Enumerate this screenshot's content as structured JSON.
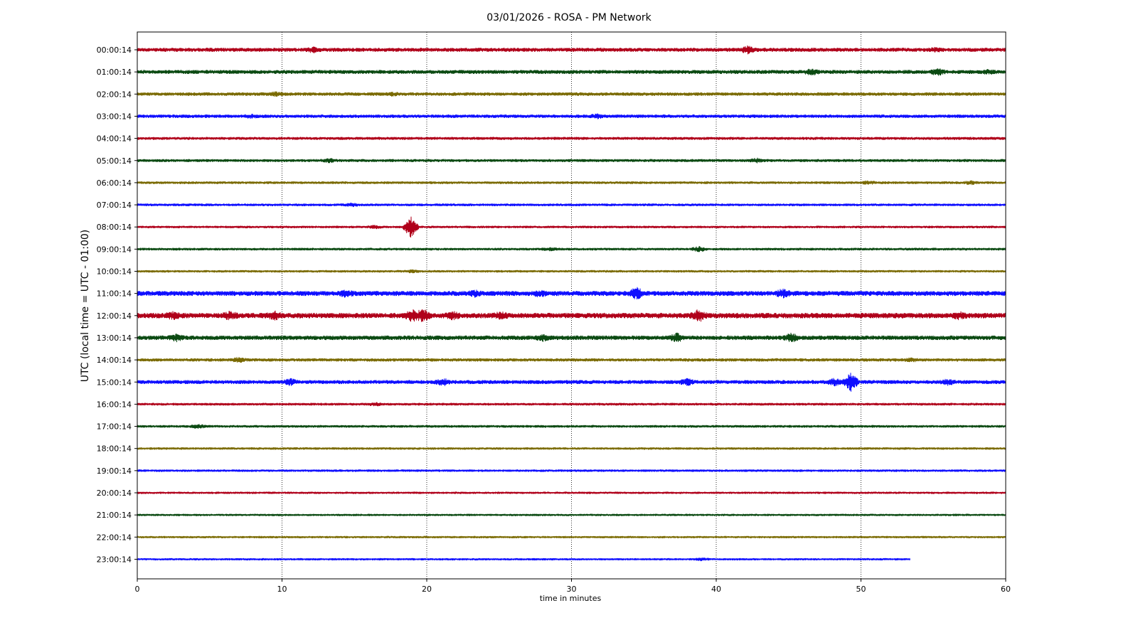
{
  "chart_data": {
    "type": "line",
    "title": "03/01/2026 - ROSA - PM Network",
    "xlabel": "time in minutes",
    "ylabel": "UTC (local time = UTC - 01:00)",
    "xlim": [
      0,
      60
    ],
    "x_ticks": [
      0,
      10,
      20,
      30,
      40,
      50,
      60
    ],
    "grid": "vertical dotted lines at x ticks",
    "colors": [
      "#b0001a",
      "#0b4a12",
      "#7a6a00",
      "#0f0fff"
    ],
    "series": [
      {
        "name": "00:00:14",
        "x_end": 60,
        "amplitude": 0.35,
        "events": [
          {
            "x": 12.2,
            "amp": 0.7
          },
          {
            "x": 42.2,
            "amp": 0.9
          },
          {
            "x": 55.2,
            "amp": 0.55
          }
        ]
      },
      {
        "name": "01:00:14",
        "x_end": 60,
        "amplitude": 0.35,
        "events": [
          {
            "x": 46.6,
            "amp": 0.8
          },
          {
            "x": 55.3,
            "amp": 0.8
          },
          {
            "x": 58.8,
            "amp": 0.55
          }
        ]
      },
      {
        "name": "02:00:14",
        "x_end": 60,
        "amplitude": 0.3,
        "events": [
          {
            "x": 9.5,
            "amp": 0.55
          },
          {
            "x": 17.6,
            "amp": 0.5
          }
        ]
      },
      {
        "name": "03:00:14",
        "x_end": 60,
        "amplitude": 0.3,
        "events": [
          {
            "x": 7.8,
            "amp": 0.5
          },
          {
            "x": 31.8,
            "amp": 0.55
          }
        ]
      },
      {
        "name": "04:00:14",
        "x_end": 60,
        "amplitude": 0.25,
        "events": []
      },
      {
        "name": "05:00:14",
        "x_end": 60,
        "amplitude": 0.25,
        "events": [
          {
            "x": 13.3,
            "amp": 0.5
          },
          {
            "x": 42.8,
            "amp": 0.55
          }
        ]
      },
      {
        "name": "06:00:14",
        "x_end": 60,
        "amplitude": 0.22,
        "events": [
          {
            "x": 50.5,
            "amp": 0.45
          },
          {
            "x": 57.6,
            "amp": 0.45
          }
        ]
      },
      {
        "name": "07:00:14",
        "x_end": 60,
        "amplitude": 0.22,
        "events": [
          {
            "x": 14.8,
            "amp": 0.45
          }
        ]
      },
      {
        "name": "08:00:14",
        "x_end": 60,
        "amplitude": 0.2,
        "events": [
          {
            "x": 18.9,
            "amp": 2.2
          },
          {
            "x": 16.4,
            "amp": 0.45
          }
        ]
      },
      {
        "name": "09:00:14",
        "x_end": 60,
        "amplitude": 0.22,
        "events": [
          {
            "x": 38.8,
            "amp": 0.6
          },
          {
            "x": 28.5,
            "amp": 0.4
          }
        ]
      },
      {
        "name": "10:00:14",
        "x_end": 60,
        "amplitude": 0.2,
        "events": [
          {
            "x": 19.0,
            "amp": 0.4
          }
        ]
      },
      {
        "name": "11:00:14",
        "x_end": 60,
        "amplitude": 0.45,
        "events": [
          {
            "x": 14.4,
            "amp": 0.9
          },
          {
            "x": 34.5,
            "amp": 1.3
          },
          {
            "x": 44.6,
            "amp": 1.0
          },
          {
            "x": 27.8,
            "amp": 0.8
          },
          {
            "x": 23.3,
            "amp": 0.8
          }
        ]
      },
      {
        "name": "12:00:14",
        "x_end": 60,
        "amplitude": 0.5,
        "events": [
          {
            "x": 2.5,
            "amp": 0.9
          },
          {
            "x": 6.4,
            "amp": 1.0
          },
          {
            "x": 9.5,
            "amp": 1.0
          },
          {
            "x": 19.0,
            "amp": 1.4
          },
          {
            "x": 19.7,
            "amp": 1.5
          },
          {
            "x": 21.8,
            "amp": 1.0
          },
          {
            "x": 25.1,
            "amp": 0.9
          },
          {
            "x": 38.8,
            "amp": 1.4
          },
          {
            "x": 56.8,
            "amp": 0.9
          }
        ]
      },
      {
        "name": "13:00:14",
        "x_end": 60,
        "amplitude": 0.4,
        "events": [
          {
            "x": 2.7,
            "amp": 0.9
          },
          {
            "x": 28.0,
            "amp": 0.8
          },
          {
            "x": 37.3,
            "amp": 1.0
          },
          {
            "x": 45.2,
            "amp": 1.0
          }
        ]
      },
      {
        "name": "14:00:14",
        "x_end": 60,
        "amplitude": 0.28,
        "events": [
          {
            "x": 7.0,
            "amp": 0.6
          },
          {
            "x": 53.5,
            "amp": 0.5
          }
        ]
      },
      {
        "name": "15:00:14",
        "x_end": 60,
        "amplitude": 0.35,
        "events": [
          {
            "x": 10.6,
            "amp": 0.8
          },
          {
            "x": 21.1,
            "amp": 0.9
          },
          {
            "x": 38.0,
            "amp": 0.8
          },
          {
            "x": 48.2,
            "amp": 0.9
          },
          {
            "x": 49.3,
            "amp": 1.9
          },
          {
            "x": 56.0,
            "amp": 0.7
          }
        ]
      },
      {
        "name": "16:00:14",
        "x_end": 60,
        "amplitude": 0.22,
        "events": [
          {
            "x": 16.4,
            "amp": 0.45
          }
        ]
      },
      {
        "name": "17:00:14",
        "x_end": 60,
        "amplitude": 0.22,
        "events": [
          {
            "x": 4.2,
            "amp": 0.5
          }
        ]
      },
      {
        "name": "18:00:14",
        "x_end": 60,
        "amplitude": 0.2,
        "events": []
      },
      {
        "name": "19:00:14",
        "x_end": 60,
        "amplitude": 0.2,
        "events": []
      },
      {
        "name": "20:00:14",
        "x_end": 60,
        "amplitude": 0.18,
        "events": []
      },
      {
        "name": "21:00:14",
        "x_end": 60,
        "amplitude": 0.18,
        "events": []
      },
      {
        "name": "22:00:14",
        "x_end": 60,
        "amplitude": 0.18,
        "events": []
      },
      {
        "name": "23:00:14",
        "x_end": 53.4,
        "amplitude": 0.18,
        "events": [
          {
            "x": 39.0,
            "amp": 0.35
          }
        ]
      }
    ]
  }
}
